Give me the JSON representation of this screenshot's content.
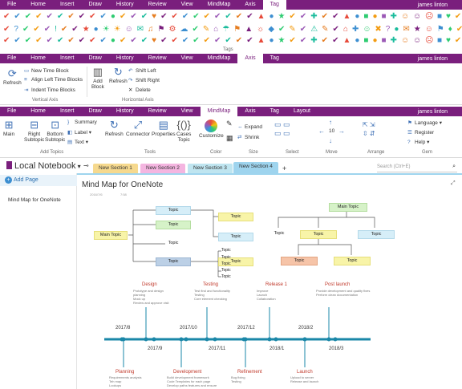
{
  "top_tabs": {
    "items": [
      "File",
      "Home",
      "Insert",
      "Draw",
      "History",
      "Review",
      "View",
      "MindMap",
      "Axis",
      "Tag"
    ],
    "active": "Tag",
    "user": "james linton"
  },
  "tag_icons_row1": [
    "✔",
    "✔",
    "✔",
    "✔",
    "✔",
    "✔",
    "✔",
    "✔",
    "✔",
    "✔",
    "●",
    "✔",
    "✔",
    "✔",
    "♥",
    "✔",
    "✔",
    "✔",
    "✔",
    "✔",
    "✔",
    "✔",
    "✔",
    "✔",
    "▲",
    "●",
    "★",
    "✔",
    "✔",
    "✚",
    "✔",
    "✔",
    "▲",
    "●",
    "■",
    "●",
    "■",
    "✚",
    "☺",
    "☺",
    "☹",
    "■",
    "♥",
    "✔",
    "☎",
    "✉",
    "■"
  ],
  "tag_icons_row2": [
    "✔",
    "?",
    "✔",
    "✔",
    "✔",
    "!",
    "✔",
    "✔",
    "★",
    "●",
    "☀",
    "☀",
    "☺",
    "✉",
    "♫",
    "⚑",
    "⚙",
    "☁",
    "✔",
    "✎",
    "⌂",
    "☂",
    "⚑",
    "▲",
    "☼",
    "◆",
    "✔",
    "✎",
    "✔",
    "⚠",
    "✎",
    "✔",
    "⌂",
    "✚",
    "☺",
    "✖",
    "?",
    "●",
    "✉",
    "★",
    "☺",
    "⚑",
    "♦",
    "✔",
    "☁",
    "✖",
    "♣"
  ],
  "tags_group_label": "Tags",
  "axis_ribbon": {
    "tabs": [
      "File",
      "Home",
      "Insert",
      "Draw",
      "History",
      "Review",
      "View",
      "MindMap",
      "Axis",
      "Tag"
    ],
    "active": "Axis",
    "user": "james linton",
    "refresh": "Refresh",
    "new_time_block": "New Time Block",
    "align_left": "Align Left Time Blocks",
    "indent": "Indent Time Blocks",
    "add_block": "Add\nBlock",
    "refresh2": "Refresh",
    "shift_left": "Shift Left",
    "shift_right": "Shift Right",
    "delete": "Delete",
    "vertical_axis": "Vertical Axis",
    "horizontal_axis": "Horizontal Axis"
  },
  "mindmap_ribbon": {
    "tabs": [
      "File",
      "Home",
      "Insert",
      "Draw",
      "History",
      "Review",
      "View",
      "MindMap",
      "Axis",
      "Tag",
      "Layout"
    ],
    "active": "MindMap",
    "user": "james linton",
    "main": "Main",
    "right_subtopic": "Right\nSubtopic",
    "bottom_subtopic": "Bottom\nSubtopic",
    "summary": "Summary",
    "label": "Label",
    "text": "Text",
    "refresh": "Refresh",
    "connector": "Connector",
    "properties": "Properties",
    "cases_topic": "Cases\nTopic",
    "customize": "Customize",
    "expand": "Expand",
    "shrink": "Shrink",
    "size_value": "10",
    "language": "Language",
    "register": "Register",
    "help": "Help",
    "groups": {
      "add_topics": "Add Topics",
      "tools": "Tools",
      "color": "Color",
      "size": "Size",
      "select": "Select",
      "move": "Move",
      "arrange": "Arrange",
      "gem": "Gem"
    }
  },
  "notebook": {
    "name": "Local Notebook",
    "sections": [
      "New Section 1",
      "New Section 2",
      "New Section 3",
      "New Section 4"
    ],
    "active_section": "New Section 4",
    "add_section": "+",
    "search_placeholder": "Search (Ctrl+E)",
    "add_page": "Add Page",
    "pages": [
      "Mind Map for OneNote"
    ]
  },
  "page": {
    "title": "Mind Map for OneNote",
    "date_meta": "2016/7/6",
    "time_meta": "7:58"
  },
  "mindmap_left": {
    "main": "Main Topic",
    "topics": [
      "Topic",
      "Topic",
      "Topic",
      "Topic",
      "Topic",
      "Topic",
      "Topic"
    ],
    "sub_topics": [
      "Topic",
      "Topic",
      "Topic",
      "Topic",
      "Topic"
    ]
  },
  "mindmap_right": {
    "main": "Main Topic",
    "topics": [
      "Topic",
      "Topic",
      "Topic",
      "Topic",
      "Topic",
      "Topic"
    ]
  },
  "timeline": {
    "years_top": [
      "2017/8",
      "2017/10",
      "2017/12",
      "2018/2"
    ],
    "years_bottom": [
      "2017/9",
      "2017/11",
      "2018/1",
      "2018/3"
    ],
    "milestones_top": [
      {
        "title": "Design",
        "desc": "Prototype and design\nplanning\nMock up\nReview and approve visit"
      },
      {
        "title": "Testing",
        "desc": "Test find and functionality\nTesting\nCore element checking"
      },
      {
        "title": "Release 1",
        "desc": "Improve\nLaunch\nCollaboration"
      },
      {
        "title": "Post launch",
        "desc": "Provide development and quality fixes\nPerform clean documentation"
      }
    ],
    "milestones_bottom": [
      {
        "title": "Planning",
        "desc": "Requirements analysis\nTeh map\nLookups"
      },
      {
        "title": "Development",
        "desc": "Build development framework\nCode Templates for each page\nDevelop paths features and ensure"
      },
      {
        "title": "Refinement",
        "desc": "Bug fixing\nTesting"
      },
      {
        "title": "Launch",
        "desc": "Upload to server\nRelease and launch"
      }
    ]
  },
  "colors": {
    "purple": "#7a1f7d",
    "sec1": "#f6d98e",
    "sec2": "#f4b5e0",
    "sec3": "#bfe5f0",
    "sec4": "#9ed4ee",
    "timeline": "#1a87a8"
  }
}
